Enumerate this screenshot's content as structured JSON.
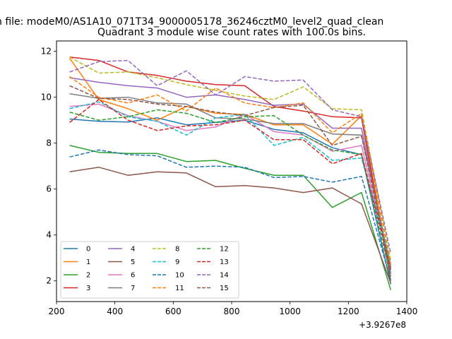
{
  "chart_data": {
    "type": "line",
    "suptitle": "n file: modeM0/AS1A10_071T34_9000005178_36246cztM0_level2_quad_clean",
    "title": "Quadrant 3 module wise count rates with 100.0s bins.",
    "xlabel": "",
    "ylabel": "",
    "x_offset_label": "+3.9267e8",
    "xlim": [
      200,
      1400
    ],
    "ylim": [
      1.1,
      12.45
    ],
    "xticks": [
      200,
      400,
      600,
      800,
      1000,
      1200,
      1400
    ],
    "xtick_labels": [
      "200",
      "400",
      "600",
      "800",
      "1000",
      "1200",
      "1400"
    ],
    "yticks": [
      2,
      4,
      6,
      8,
      10,
      12
    ],
    "ytick_labels": [
      "2",
      "4",
      "6",
      "8",
      "10",
      "12"
    ],
    "legend_position": "lower-left",
    "x": [
      245,
      345,
      445,
      545,
      645,
      745,
      845,
      945,
      1045,
      1145,
      1245,
      1345
    ],
    "series": [
      {
        "name": "0",
        "color": "#1f77b4",
        "dash": "solid",
        "values": [
          9.05,
          8.95,
          8.92,
          9.1,
          8.8,
          8.9,
          9.0,
          8.6,
          8.45,
          7.8,
          7.5,
          1.85
        ]
      },
      {
        "name": "1",
        "color": "#ff7f0e",
        "dash": "solid",
        "values": [
          11.7,
          9.9,
          9.5,
          9.0,
          9.6,
          9.3,
          9.25,
          8.8,
          8.8,
          7.95,
          9.2,
          2.3
        ]
      },
      {
        "name": "2",
        "color": "#2ca02c",
        "dash": "solid",
        "values": [
          7.9,
          7.6,
          7.55,
          7.55,
          7.2,
          7.25,
          6.9,
          6.6,
          6.6,
          5.2,
          5.85,
          1.6
        ]
      },
      {
        "name": "3",
        "color": "#d62728",
        "dash": "solid",
        "values": [
          11.75,
          11.6,
          11.1,
          10.95,
          10.7,
          10.55,
          10.5,
          9.6,
          9.4,
          9.15,
          9.1,
          2.0
        ]
      },
      {
        "name": "4",
        "color": "#9467bd",
        "dash": "solid",
        "values": [
          10.85,
          10.65,
          10.5,
          10.4,
          10.0,
          10.1,
          9.9,
          9.65,
          9.7,
          8.65,
          8.65,
          2.3
        ]
      },
      {
        "name": "5",
        "color": "#8c564b",
        "dash": "solid",
        "values": [
          6.75,
          6.95,
          6.6,
          6.75,
          6.7,
          6.1,
          6.15,
          6.05,
          5.85,
          6.05,
          5.35,
          1.9
        ]
      },
      {
        "name": "6",
        "color": "#e377c2",
        "dash": "solid",
        "values": [
          9.6,
          9.7,
          9.2,
          8.95,
          8.55,
          8.7,
          9.25,
          8.5,
          8.35,
          7.65,
          7.9,
          2.5
        ]
      },
      {
        "name": "7",
        "color": "#7f7f7f",
        "dash": "solid",
        "values": [
          10.15,
          9.95,
          10.0,
          9.75,
          9.7,
          9.1,
          9.05,
          8.85,
          8.85,
          8.4,
          8.35,
          2.6
        ]
      },
      {
        "name": "8",
        "color": "#bcbd22",
        "dash": "dashed",
        "values": [
          11.75,
          11.05,
          11.1,
          10.85,
          10.55,
          10.3,
          10.05,
          9.9,
          10.45,
          9.5,
          9.45,
          2.9
        ]
      },
      {
        "name": "9",
        "color": "#17becf",
        "dash": "dashed",
        "values": [
          9.5,
          9.8,
          9.15,
          8.95,
          8.35,
          9.1,
          9.25,
          7.9,
          8.25,
          7.25,
          7.35,
          2.8
        ]
      },
      {
        "name": "10",
        "color": "#1f77b4",
        "dash": "dashed",
        "values": [
          7.4,
          7.7,
          7.5,
          7.45,
          6.95,
          7.0,
          6.95,
          6.5,
          6.55,
          6.3,
          6.55,
          2.0
        ]
      },
      {
        "name": "11",
        "color": "#ff7f0e",
        "dash": "dashed",
        "values": [
          10.9,
          10.0,
          9.75,
          10.1,
          9.4,
          10.4,
          9.75,
          9.55,
          9.75,
          8.45,
          9.3,
          2.7
        ]
      },
      {
        "name": "12",
        "color": "#2ca02c",
        "dash": "dashed",
        "values": [
          9.35,
          9.0,
          9.15,
          9.45,
          9.3,
          8.9,
          9.15,
          9.2,
          8.35,
          7.7,
          7.5,
          2.2
        ]
      },
      {
        "name": "13",
        "color": "#d62728",
        "dash": "dashed",
        "values": [
          8.9,
          9.9,
          9.0,
          8.55,
          8.75,
          8.8,
          9.0,
          8.15,
          8.15,
          7.1,
          7.55,
          2.5
        ]
      },
      {
        "name": "14",
        "color": "#9467bd",
        "dash": "dashed",
        "values": [
          11.1,
          11.55,
          11.6,
          10.5,
          11.15,
          10.1,
          10.9,
          10.7,
          10.75,
          9.45,
          9.15,
          3.2
        ]
      },
      {
        "name": "15",
        "color": "#8c564b",
        "dash": "dashed",
        "values": [
          10.5,
          9.95,
          9.9,
          9.7,
          9.6,
          9.35,
          9.2,
          9.55,
          9.65,
          7.9,
          8.3,
          2.4
        ]
      }
    ]
  }
}
